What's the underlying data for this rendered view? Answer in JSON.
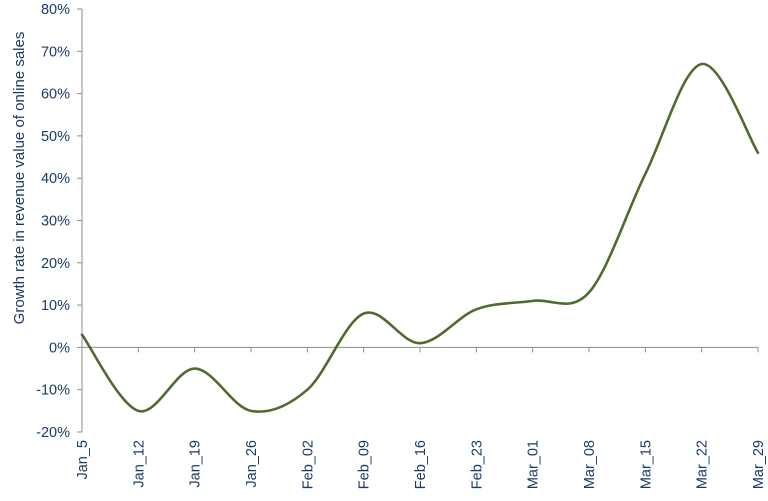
{
  "chart_data": {
    "type": "line",
    "title": "",
    "xlabel": "",
    "ylabel": "Growth rate in revenue value of online sales",
    "categories": [
      "Jan_5",
      "Jan_12",
      "Jan_19",
      "Jan_26",
      "Feb_02",
      "Feb_09",
      "Feb_16",
      "Feb_23",
      "Mar_01",
      "Mar_08",
      "Mar_15",
      "Mar_22",
      "Mar_29"
    ],
    "series": [
      {
        "values": [
          3,
          -15,
          -5,
          -15,
          -10,
          8,
          1,
          9,
          11,
          13,
          41,
          67,
          46
        ]
      }
    ],
    "ylim": [
      -20,
      80
    ],
    "yticks": [
      -20,
      -10,
      0,
      10,
      20,
      30,
      40,
      50,
      60,
      70,
      80
    ],
    "ytick_format": "percent",
    "grid": false,
    "legend": "none",
    "colors": {
      "line": "#4f6b2d",
      "axis": "#8c8c8c",
      "text": "#1a3b66"
    }
  }
}
